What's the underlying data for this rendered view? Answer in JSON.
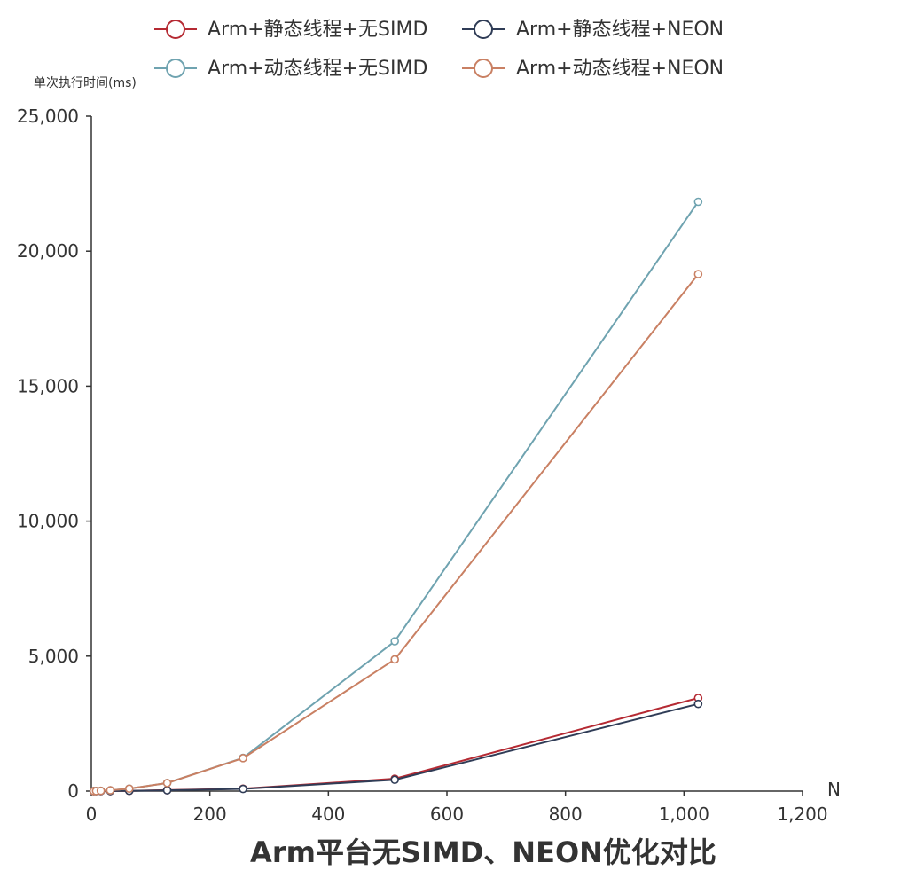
{
  "chart_data": {
    "type": "line",
    "title": "Arm平台无SIMD、NEON优化对比",
    "xlabel": "N",
    "ylabel": "单次执行时间(ms)",
    "xlim": [
      0,
      1200
    ],
    "ylim": [
      0,
      25000
    ],
    "x_ticks": [
      "0",
      "200",
      "400",
      "600",
      "800",
      "1,000",
      "1,200"
    ],
    "y_ticks": [
      "0",
      "5,000",
      "10,000",
      "15,000",
      "20,000",
      "25,000"
    ],
    "x_tick_values": [
      0,
      200,
      400,
      600,
      800,
      1000,
      1200
    ],
    "y_tick_values": [
      0,
      5000,
      10000,
      15000,
      20000,
      25000
    ],
    "grid": false,
    "legend_position": "top",
    "x": [
      4,
      8,
      16,
      32,
      64,
      128,
      256,
      512,
      1024
    ],
    "series": [
      {
        "name": "Arm+静态线程+无SIMD",
        "color": "#b52a33",
        "values": [
          0.1,
          0.3,
          1,
          3,
          10,
          35,
          90,
          460,
          3450
        ]
      },
      {
        "name": "Arm+静态线程+NEON",
        "color": "#2f3c56",
        "values": [
          0.1,
          0.3,
          1,
          3,
          9,
          30,
          80,
          420,
          3230
        ]
      },
      {
        "name": "Arm+动态线程+无SIMD",
        "color": "#6fa3b0",
        "values": [
          1,
          3,
          10,
          30,
          90,
          300,
          1230,
          5550,
          21830
        ]
      },
      {
        "name": "Arm+动态线程+NEON",
        "color": "#c98063",
        "values": [
          1,
          3,
          10,
          30,
          90,
          300,
          1220,
          4880,
          19150
        ]
      }
    ]
  }
}
